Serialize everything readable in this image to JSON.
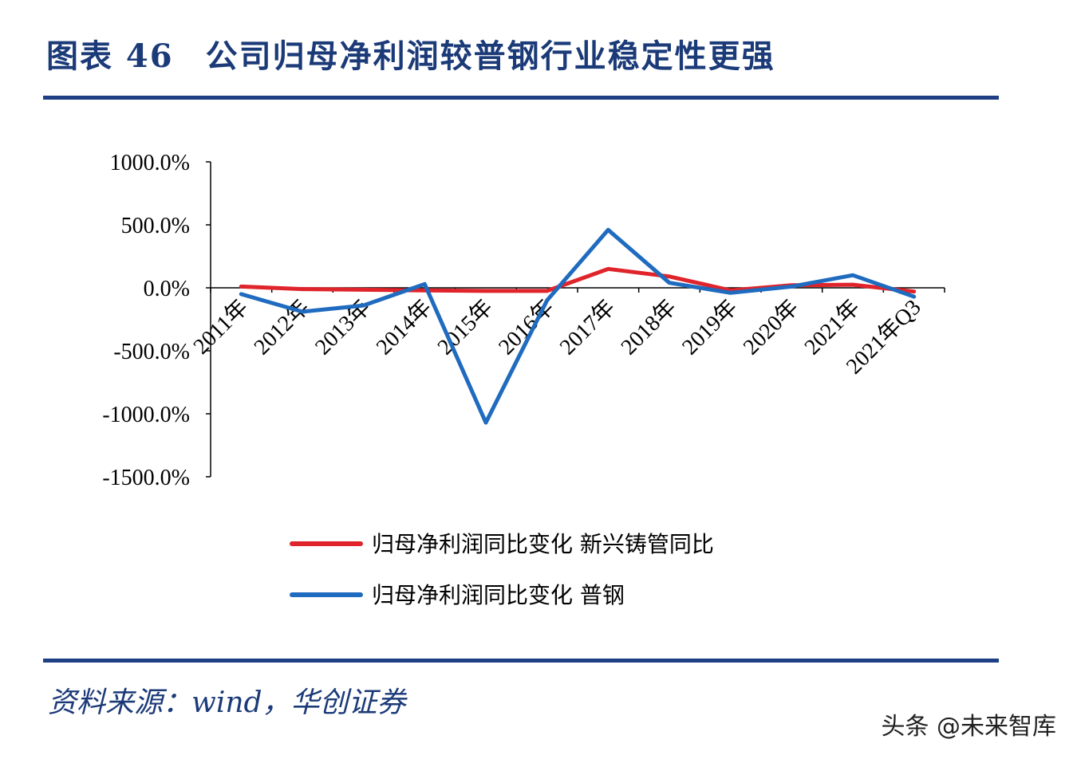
{
  "header": {
    "figure_label": "图表 46",
    "title": "公司归母净利润较普钢行业稳定性更强"
  },
  "footer": {
    "source": "资料来源：wind，华创证券",
    "watermark": "头条 @未来智库"
  },
  "chart_data": {
    "type": "line",
    "title": "",
    "xlabel": "",
    "ylabel": "",
    "categories": [
      "2011年",
      "2012年",
      "2013年",
      "2014年",
      "2015年",
      "2016年",
      "2017年",
      "2018年",
      "2019年",
      "2020年",
      "2021年",
      "2021年Q3"
    ],
    "ylim": [
      -1500,
      1000
    ],
    "yticks": [
      1000,
      500,
      0,
      -500,
      -1000,
      -1500
    ],
    "ytick_labels": [
      "1000.0%",
      "500.0%",
      "0.0%",
      "-500.0%",
      "-1000.0%",
      "-1500.0%"
    ],
    "grid": false,
    "legend_position": "bottom",
    "series": [
      {
        "name": "归母净利润同比变化 新兴铸管同比",
        "color": "#e0242b",
        "values": [
          10,
          -10,
          -15,
          -20,
          -25,
          -25,
          150,
          90,
          -20,
          20,
          25,
          -30
        ]
      },
      {
        "name": "归母净利润同比变化 普钢",
        "color": "#1f6bbf",
        "values": [
          -50,
          -190,
          -140,
          30,
          -1070,
          -100,
          460,
          40,
          -40,
          10,
          100,
          -70
        ]
      }
    ]
  }
}
